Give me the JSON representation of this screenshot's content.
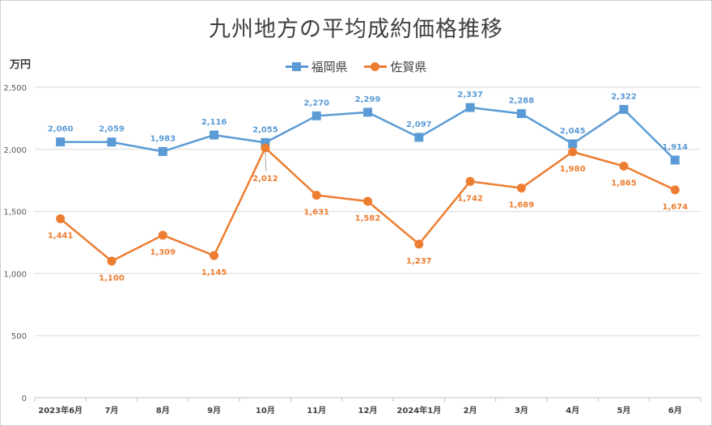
{
  "chart_data": {
    "type": "line",
    "title": "九州地方の平均成約価格推移",
    "ylabel": "万円",
    "xlabel": "",
    "ylim": [
      0,
      2500
    ],
    "yticks": [
      0,
      500,
      1000,
      1500,
      2000,
      2500
    ],
    "ytick_labels": [
      "0",
      "500",
      "1,000",
      "1,500",
      "2,000",
      "2,500"
    ],
    "categories": [
      "2023年6月",
      "7月",
      "8月",
      "9月",
      "10月",
      "11月",
      "12月",
      "2024年1月",
      "2月",
      "3月",
      "4月",
      "5月",
      "6月"
    ],
    "legend_position": "top-center",
    "grid": true,
    "series": [
      {
        "name": "福岡県",
        "color": "#5B9BD5",
        "marker": "square",
        "values": [
          2060,
          2059,
          1983,
          2116,
          2055,
          2270,
          2299,
          2097,
          2337,
          2288,
          2045,
          2322,
          1914
        ],
        "labels": [
          "2,060",
          "2,059",
          "1,983",
          "2,116",
          "2,055",
          "2,270",
          "2,299",
          "2,097",
          "2,337",
          "2,288",
          "2,045",
          "2,322",
          "1,914"
        ]
      },
      {
        "name": "佐賀県",
        "color": "#ED7D31",
        "marker": "circle",
        "values": [
          1441,
          1100,
          1309,
          1145,
          2012,
          1631,
          1582,
          1237,
          1742,
          1689,
          1980,
          1865,
          1674
        ],
        "labels": [
          "1,441",
          "1,100",
          "1,309",
          "1,145",
          "2,012",
          "1,631",
          "1,582",
          "1,237",
          "1,742",
          "1,689",
          "1,980",
          "1,865",
          "1,674"
        ]
      }
    ]
  }
}
